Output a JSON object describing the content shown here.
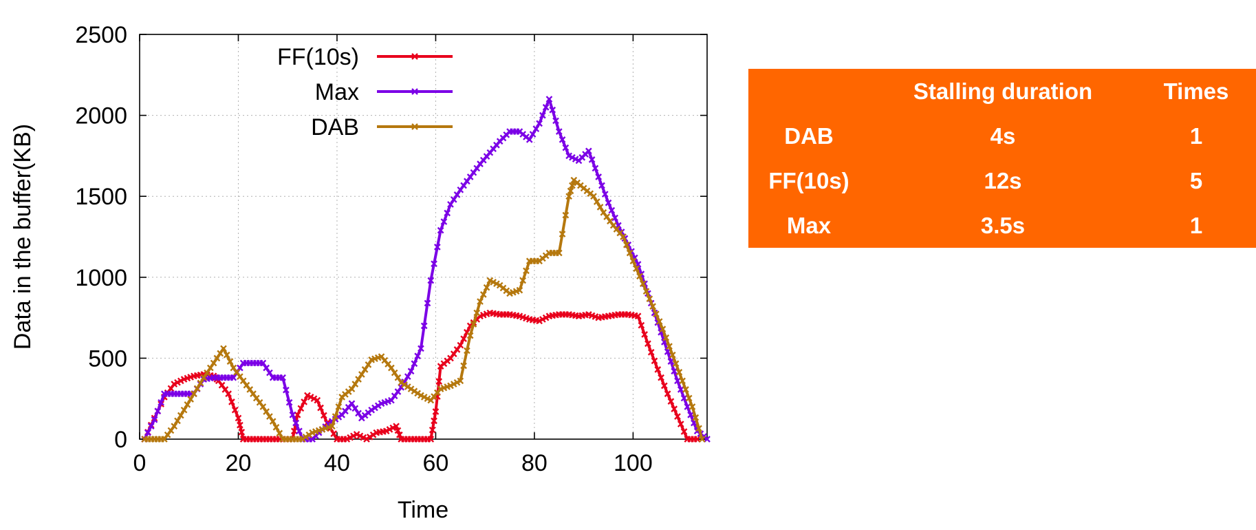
{
  "chart_data": {
    "type": "line",
    "xlabel": "Time",
    "ylabel": "Data in the buffer(KB)",
    "xlim": [
      0,
      115
    ],
    "ylim": [
      0,
      2500
    ],
    "xticks": [
      0,
      20,
      40,
      60,
      80,
      100
    ],
    "yticks": [
      0,
      500,
      1000,
      1500,
      2000,
      2500
    ],
    "grid": true,
    "legend_position": "top-left",
    "series": [
      {
        "name": "FF(10s)",
        "color": "#e8001c",
        "x": [
          1,
          3,
          5,
          7,
          9,
          11,
          13,
          15,
          16,
          18,
          20,
          21,
          23,
          25,
          27,
          29,
          31,
          32,
          34,
          36,
          38,
          40,
          42,
          44,
          46,
          48,
          50,
          52,
          53,
          55,
          57,
          59,
          60,
          61,
          63,
          65,
          67,
          69,
          71,
          73,
          75,
          77,
          79,
          81,
          83,
          85,
          87,
          89,
          91,
          93,
          95,
          97,
          99,
          101,
          103,
          105,
          107,
          109,
          111,
          113
        ],
        "y": [
          0,
          130,
          260,
          340,
          370,
          390,
          400,
          390,
          360,
          280,
          130,
          0,
          0,
          0,
          0,
          0,
          0,
          150,
          270,
          240,
          100,
          0,
          0,
          30,
          0,
          40,
          50,
          80,
          0,
          0,
          0,
          0,
          170,
          450,
          500,
          580,
          700,
          760,
          780,
          770,
          770,
          760,
          740,
          730,
          760,
          770,
          770,
          760,
          770,
          750,
          760,
          770,
          770,
          760,
          590,
          430,
          280,
          140,
          0,
          0
        ]
      },
      {
        "name": "Max",
        "color": "#7b00e6",
        "x": [
          1,
          3,
          5,
          7,
          9,
          11,
          13,
          15,
          17,
          19,
          21,
          23,
          25,
          27,
          29,
          31,
          33,
          35,
          37,
          39,
          41,
          43,
          45,
          47,
          49,
          51,
          53,
          55,
          57,
          59,
          61,
          63,
          65,
          67,
          69,
          71,
          73,
          75,
          77,
          79,
          81,
          83,
          85,
          87,
          89,
          91,
          93,
          95,
          97,
          99,
          101,
          103,
          105,
          107,
          109,
          111,
          113,
          115
        ],
        "y": [
          0,
          120,
          280,
          280,
          280,
          280,
          370,
          380,
          380,
          380,
          470,
          470,
          470,
          380,
          380,
          150,
          0,
          0,
          60,
          110,
          150,
          220,
          130,
          180,
          220,
          240,
          320,
          420,
          560,
          980,
          1290,
          1450,
          1540,
          1620,
          1700,
          1770,
          1840,
          1900,
          1900,
          1850,
          1950,
          2100,
          1900,
          1750,
          1720,
          1780,
          1620,
          1460,
          1320,
          1200,
          1080,
          900,
          720,
          540,
          360,
          200,
          50,
          0
        ]
      },
      {
        "name": "DAB",
        "color": "#b5780e",
        "x": [
          1,
          3,
          5,
          7,
          9,
          11,
          13,
          15,
          17,
          19,
          21,
          23,
          25,
          27,
          29,
          31,
          33,
          35,
          37,
          39,
          41,
          43,
          45,
          47,
          49,
          51,
          53,
          55,
          57,
          59,
          61,
          63,
          65,
          67,
          69,
          71,
          73,
          75,
          77,
          79,
          81,
          83,
          85,
          87,
          88,
          90,
          92,
          94,
          96,
          98,
          100,
          102,
          104,
          106,
          108,
          110,
          112,
          114
        ],
        "y": [
          0,
          0,
          0,
          80,
          180,
          280,
          380,
          470,
          560,
          440,
          360,
          280,
          200,
          110,
          0,
          0,
          0,
          40,
          60,
          80,
          260,
          310,
          400,
          490,
          510,
          440,
          350,
          310,
          270,
          240,
          310,
          330,
          360,
          640,
          850,
          980,
          950,
          900,
          920,
          1100,
          1100,
          1150,
          1150,
          1500,
          1600,
          1550,
          1500,
          1400,
          1320,
          1250,
          1100,
          960,
          820,
          680,
          520,
          360,
          200,
          0
        ]
      }
    ]
  },
  "table": {
    "headers": [
      "",
      "Stalling duration",
      "Times"
    ],
    "rows": [
      [
        "DAB",
        "4s",
        "1"
      ],
      [
        "FF(10s)",
        "12s",
        "5"
      ],
      [
        "Max",
        "3.5s",
        "1"
      ]
    ],
    "background": "#ff6600"
  }
}
